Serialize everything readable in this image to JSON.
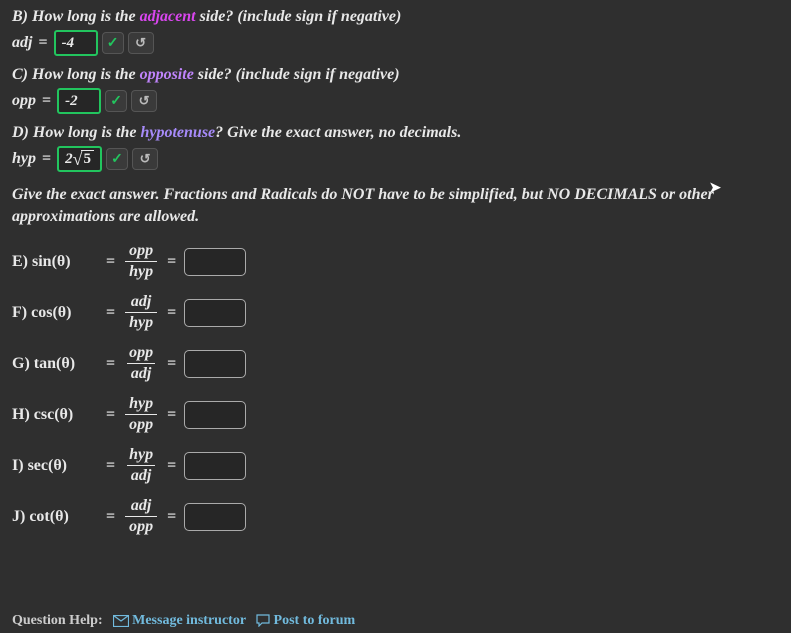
{
  "colors": {
    "background": "#2f2f2f",
    "text": "#e8e8e8",
    "input_border_correct": "#22c55e",
    "empty_border": "#aaaaaa",
    "highlight_adjacent": "#d946ef",
    "highlight_opposite": "#c084fc",
    "highlight_hypotenuse": "#a78bfa",
    "link": "#7dd3fc"
  },
  "questions": {
    "B": {
      "prompt_prefix": "B) How long is the ",
      "keyword": "adjacent",
      "prompt_suffix": " side? (include sign if negative)",
      "var": "adj",
      "value": "-4",
      "correct": true
    },
    "C": {
      "prompt_prefix": "C) How long is the ",
      "keyword": "opposite",
      "prompt_suffix": " side? (include sign if negative)",
      "var": "opp",
      "value": "-2",
      "correct": true
    },
    "D": {
      "prompt_prefix": "D) How long is the ",
      "keyword": "hypotenuse",
      "prompt_suffix": "? Give the exact answer, no decimals.",
      "var": "hyp",
      "value_prefix": "2",
      "value_radicand": "5",
      "correct": true
    }
  },
  "instructions": "Give the exact answer. Fractions and Radicals do NOT have to be simplified, but NO DECIMALS or other approximations are allowed.",
  "trig": [
    {
      "letter": "E",
      "fn": "sin",
      "num": "opp",
      "den": "hyp"
    },
    {
      "letter": "F",
      "fn": "cos",
      "num": "adj",
      "den": "hyp"
    },
    {
      "letter": "G",
      "fn": "tan",
      "num": "opp",
      "den": "adj"
    },
    {
      "letter": "H",
      "fn": "csc",
      "num": "hyp",
      "den": "opp"
    },
    {
      "letter": "I",
      "fn": "sec",
      "num": "hyp",
      "den": "adj"
    },
    {
      "letter": "J",
      "fn": "cot",
      "num": "adj",
      "den": "opp"
    }
  ],
  "footer": {
    "question_help": "Question Help:",
    "message_instructor": "Message instructor",
    "post_to_forum": "Post to forum"
  },
  "icons": {
    "check": "✓",
    "retry": "↺",
    "mail": "✉",
    "forum": "💬"
  }
}
